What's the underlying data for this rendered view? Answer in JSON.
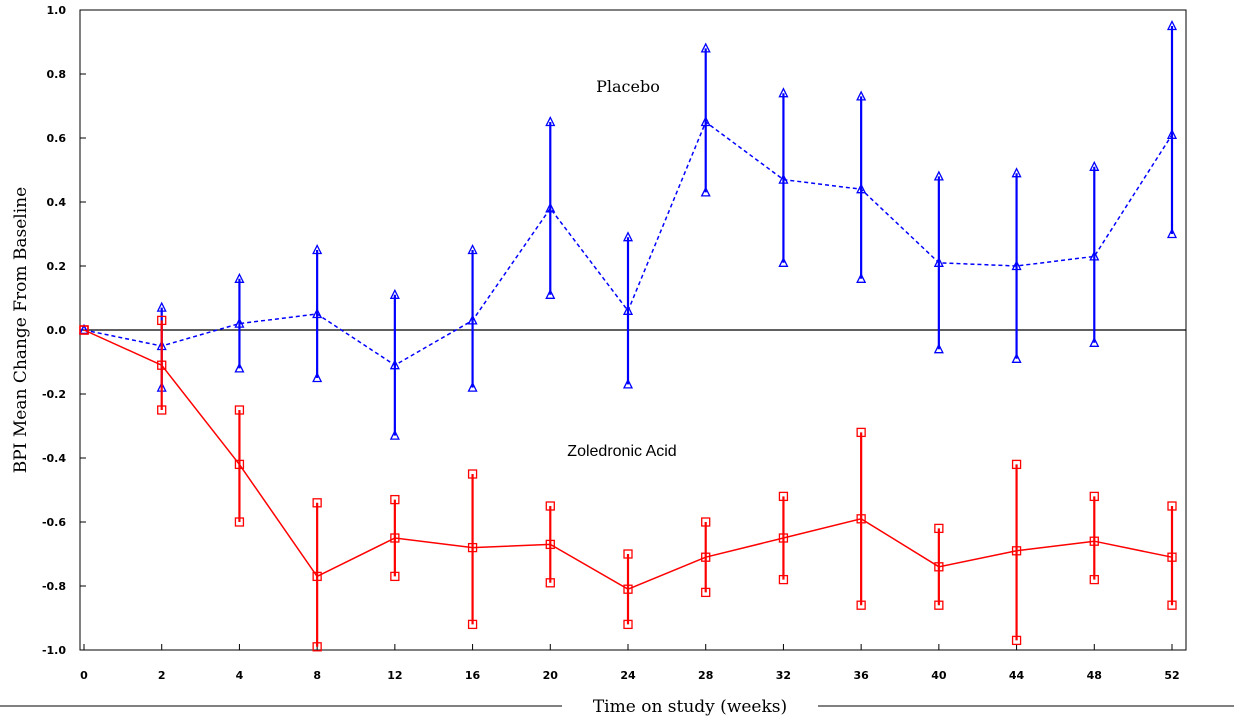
{
  "chart_data": {
    "type": "line",
    "title": "",
    "xlabel": "Time on study (weeks)",
    "ylabel": "BPI Mean Change From Baseline",
    "x": [
      0,
      2,
      4,
      8,
      12,
      16,
      20,
      24,
      28,
      32,
      36,
      40,
      44,
      48,
      52
    ],
    "x_tick_labels": [
      "0",
      "2",
      "4",
      "8",
      "12",
      "16",
      "20",
      "24",
      "28",
      "32",
      "36",
      "40",
      "44",
      "48",
      "52"
    ],
    "y_tick_labels": [
      "1.0",
      "0.8",
      "0.6",
      "0.4",
      "0.2",
      "0.0",
      "-0.2",
      "-0.4",
      "-0.6",
      "-0.8",
      "-1.0"
    ],
    "y_ticks": [
      1.0,
      0.8,
      0.6,
      0.4,
      0.2,
      0.0,
      -0.2,
      -0.4,
      -0.6,
      -0.8,
      -1.0
    ],
    "ylim": [
      -1.0,
      1.0
    ],
    "reference_line_y": 0,
    "grid": false,
    "series": [
      {
        "name": "Placebo",
        "color": "#0000ff",
        "line_style": "dashed",
        "marker": "triangle",
        "mean": [
          0.0,
          -0.05,
          0.02,
          0.05,
          -0.11,
          0.03,
          0.38,
          0.06,
          0.65,
          0.47,
          0.44,
          0.21,
          0.2,
          0.23,
          0.61
        ],
        "upper": [
          0.0,
          0.07,
          0.16,
          0.25,
          0.11,
          0.25,
          0.65,
          0.29,
          0.88,
          0.74,
          0.73,
          0.48,
          0.49,
          0.51,
          0.95
        ],
        "lower": [
          0.0,
          -0.18,
          -0.12,
          -0.15,
          -0.33,
          -0.18,
          0.11,
          -0.17,
          0.43,
          0.21,
          0.16,
          -0.06,
          -0.09,
          -0.04,
          0.3
        ]
      },
      {
        "name": "Zoledronic Acid",
        "color": "#ff0000",
        "line_style": "solid",
        "marker": "square",
        "mean": [
          0.0,
          -0.11,
          -0.42,
          -0.77,
          -0.65,
          -0.68,
          -0.67,
          -0.81,
          -0.71,
          -0.65,
          -0.59,
          -0.74,
          -0.69,
          -0.66,
          -0.71
        ],
        "upper": [
          0.0,
          0.03,
          -0.25,
          -0.54,
          -0.53,
          -0.45,
          -0.55,
          -0.7,
          -0.6,
          -0.52,
          -0.32,
          -0.62,
          -0.42,
          -0.52,
          -0.55
        ],
        "lower": [
          0.0,
          -0.25,
          -0.6,
          -0.99,
          -0.77,
          -0.92,
          -0.79,
          -0.92,
          -0.82,
          -0.78,
          -0.86,
          -0.86,
          -0.97,
          -0.78,
          -0.86
        ]
      }
    ],
    "annotations": [
      {
        "text": "Placebo",
        "x": 24,
        "y": 0.78
      },
      {
        "text": "Zoledronic Acid",
        "x": 24,
        "y": -0.39
      }
    ]
  }
}
